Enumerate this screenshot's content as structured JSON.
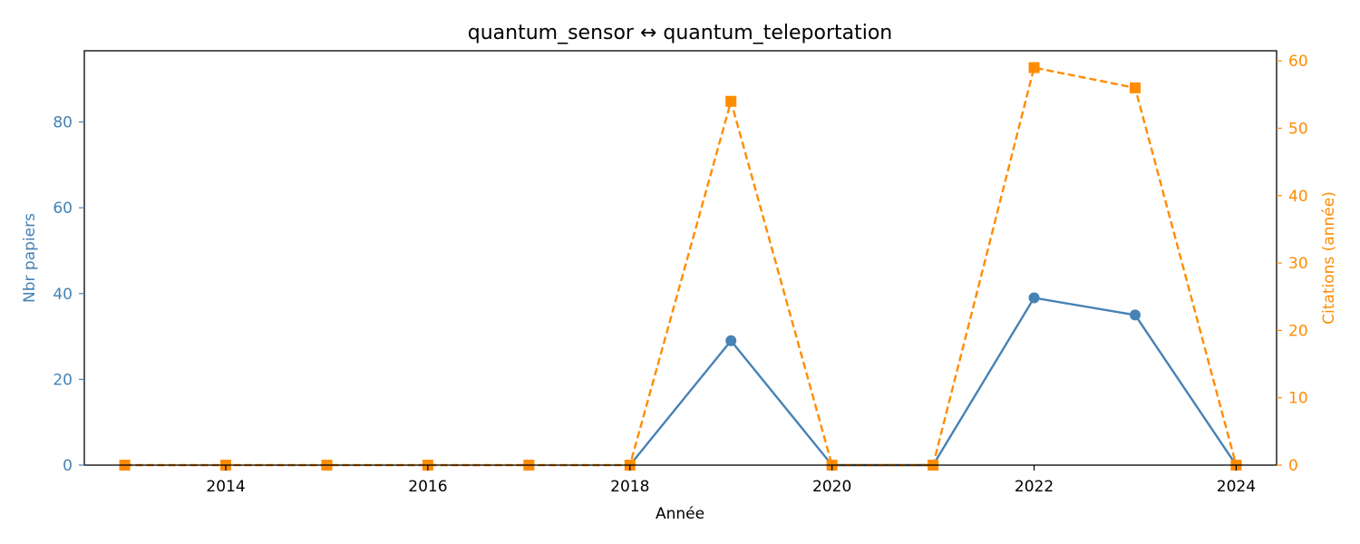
{
  "chart_data": {
    "type": "line",
    "title": "quantum_sensor  ↔  quantum_teleportation",
    "xlabel": "Année",
    "ylabel_left": "Nbr papiers",
    "ylabel_right": "Citations (année)",
    "xlim": [
      2012.6,
      2024.4
    ],
    "ylim_left": [
      0,
      96.6
    ],
    "ylim_right": [
      0,
      61.5
    ],
    "x_ticks": [
      2014,
      2016,
      2018,
      2020,
      2022,
      2024
    ],
    "y_left_ticks": [
      0,
      20,
      40,
      60,
      80
    ],
    "y_right_ticks": [
      0,
      10,
      20,
      30,
      40,
      50,
      60
    ],
    "grid": false,
    "series": [
      {
        "axis": "left",
        "marker": "circle",
        "line_style": "solid",
        "color": "#4682b4",
        "x": [
          2018,
          2019,
          2020,
          2021,
          2022,
          2023,
          2024
        ],
        "values": [
          0,
          29,
          0,
          0,
          39,
          35,
          0
        ]
      },
      {
        "axis": "right",
        "marker": "square",
        "line_style": "dashed",
        "color": "#ff8c00",
        "x": [
          2013,
          2014,
          2015,
          2016,
          2017,
          2018,
          2019,
          2020,
          2021,
          2022,
          2023,
          2024
        ],
        "values": [
          0,
          0,
          0,
          0,
          0,
          0,
          54,
          0,
          0,
          59,
          56,
          0
        ]
      }
    ]
  },
  "colors": {
    "left_axis": "#4682b4",
    "right_axis": "#ff8c00",
    "frame": "#000000",
    "background": "#ffffff"
  }
}
